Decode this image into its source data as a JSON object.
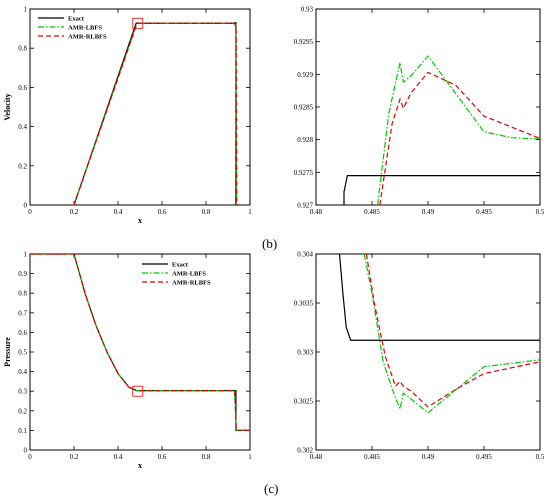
{
  "captions": {
    "b": "(b)",
    "c": "(c)"
  },
  "colors": {
    "exact": "#000000",
    "lbfs": "#00c800",
    "rlbfs": "#e00000",
    "zoom_box": "#e00000"
  },
  "legend_labels": {
    "exact": "Exact",
    "lbfs": "AMR-LBFS",
    "rlbfs": "AMR-RLBFS"
  },
  "chart_data": [
    {
      "id": "velocity-full",
      "type": "line",
      "xlabel": "x",
      "ylabel": "Velocity",
      "xlim": [
        0,
        1
      ],
      "ylim": [
        0,
        1
      ],
      "xticks": [
        "0",
        "0.2",
        "0.4",
        "0.6",
        "0.8",
        "1"
      ],
      "yticks": [
        "0",
        "0.2",
        "0.4",
        "0.6",
        "0.8",
        "1"
      ],
      "legend": "top-left",
      "series": [
        {
          "name": "Exact",
          "key": "exact",
          "points": [
            [
              0.2,
              0
            ],
            [
              0.4826,
              0.9274
            ],
            [
              0.93,
              0.9274
            ],
            [
              0.93,
              0.93
            ],
            [
              0.936,
              0.93
            ],
            [
              0.936,
              0
            ],
            [
              0.95,
              0
            ]
          ]
        },
        {
          "name": "AMR-LBFS",
          "key": "lbfs",
          "points": [
            [
              0.2,
              0
            ],
            [
              0.487,
              0.929
            ],
            [
              0.495,
              0.928
            ],
            [
              0.93,
              0.928
            ],
            [
              0.936,
              0.92
            ],
            [
              0.939,
              0
            ],
            [
              0.95,
              0
            ]
          ]
        },
        {
          "name": "AMR-RLBFS",
          "key": "rlbfs",
          "points": [
            [
              0.2,
              0
            ],
            [
              0.487,
              0.9287
            ],
            [
              0.495,
              0.9283
            ],
            [
              0.93,
              0.928
            ],
            [
              0.937,
              0.9
            ],
            [
              0.94,
              0
            ],
            [
              0.95,
              0
            ]
          ]
        }
      ],
      "zoom_box": {
        "x": 0.49,
        "y": 0.927
      }
    },
    {
      "id": "velocity-zoom",
      "type": "line",
      "xlabel": "",
      "ylabel": "",
      "xlim": [
        0.48,
        0.5
      ],
      "ylim": [
        0.927,
        0.93
      ],
      "xticks": [
        "0.48",
        "0.485",
        "0.49",
        "0.495",
        "0.5"
      ],
      "yticks": [
        "0.927",
        "0.9275",
        "0.928",
        "0.9285",
        "0.929",
        "0.9295",
        "0.93"
      ],
      "series": [
        {
          "name": "Exact",
          "key": "exact",
          "points": [
            [
              0.4825,
              0.927
            ],
            [
              0.4825,
              0.9272
            ],
            [
              0.4828,
              0.92745
            ],
            [
              0.5,
              0.92745
            ]
          ]
        },
        {
          "name": "AMR-LBFS",
          "key": "lbfs",
          "points": [
            [
              0.4855,
              0.927
            ],
            [
              0.4865,
              0.9284
            ],
            [
              0.4875,
              0.92918
            ],
            [
              0.4878,
              0.92888
            ],
            [
              0.4885,
              0.92898
            ],
            [
              0.49,
              0.92928
            ],
            [
              0.495,
              0.92812
            ],
            [
              0.4975,
              0.92803
            ],
            [
              0.5,
              0.92801
            ]
          ]
        },
        {
          "name": "AMR-RLBFS",
          "key": "rlbfs",
          "points": [
            [
              0.4857,
              0.927
            ],
            [
              0.4868,
              0.92825
            ],
            [
              0.4875,
              0.92862
            ],
            [
              0.4878,
              0.92848
            ],
            [
              0.4885,
              0.92872
            ],
            [
              0.49,
              0.92903
            ],
            [
              0.4925,
              0.92883
            ],
            [
              0.495,
              0.92836
            ],
            [
              0.5,
              0.92802
            ]
          ]
        }
      ]
    },
    {
      "id": "pressure-full",
      "type": "line",
      "xlabel": "x",
      "ylabel": "Pressure",
      "xlim": [
        0,
        1
      ],
      "ylim": [
        0,
        1
      ],
      "xticks": [
        "0",
        "0.2",
        "0.4",
        "0.6",
        "0.8",
        "1"
      ],
      "yticks": [
        "0",
        "0.1",
        "0.2",
        "0.3",
        "0.4",
        "0.5",
        "0.6",
        "0.7",
        "0.8",
        "0.9",
        "1"
      ],
      "legend": "top-right",
      "series": [
        {
          "name": "Exact",
          "key": "exact",
          "points": [
            [
              0,
              1
            ],
            [
              0.2,
              1
            ],
            [
              0.25,
              0.8
            ],
            [
              0.3,
              0.635
            ],
            [
              0.35,
              0.5
            ],
            [
              0.4,
              0.39
            ],
            [
              0.45,
              0.32
            ],
            [
              0.4826,
              0.3031
            ],
            [
              0.93,
              0.3031
            ],
            [
              0.936,
              0.3031
            ],
            [
              0.936,
              0.1
            ],
            [
              1,
              0.1
            ]
          ]
        },
        {
          "name": "AMR-LBFS",
          "key": "lbfs",
          "points": [
            [
              0,
              1
            ],
            [
              0.2,
              1
            ],
            [
              0.25,
              0.8
            ],
            [
              0.3,
              0.635
            ],
            [
              0.35,
              0.5
            ],
            [
              0.4,
              0.39
            ],
            [
              0.45,
              0.32
            ],
            [
              0.487,
              0.3024
            ],
            [
              0.49,
              0.30237
            ],
            [
              0.495,
              0.30285
            ],
            [
              0.93,
              0.3029
            ],
            [
              0.938,
              0.1
            ],
            [
              1,
              0.1
            ]
          ]
        },
        {
          "name": "AMR-RLBFS",
          "key": "rlbfs",
          "points": [
            [
              0,
              1
            ],
            [
              0.2,
              1
            ],
            [
              0.25,
              0.8
            ],
            [
              0.3,
              0.635
            ],
            [
              0.35,
              0.5
            ],
            [
              0.4,
              0.39
            ],
            [
              0.45,
              0.32
            ],
            [
              0.487,
              0.3027
            ],
            [
              0.49,
              0.30245
            ],
            [
              0.495,
              0.30275
            ],
            [
              0.93,
              0.3029
            ],
            [
              0.938,
              0.1
            ],
            [
              1,
              0.1
            ]
          ]
        }
      ],
      "zoom_box": {
        "x": 0.49,
        "y": 0.3
      }
    },
    {
      "id": "pressure-zoom",
      "type": "line",
      "xlabel": "",
      "ylabel": "",
      "xlim": [
        0.48,
        0.5
      ],
      "ylim": [
        0.302,
        0.304
      ],
      "xticks": [
        "0.48",
        "0.485",
        "0.49",
        "0.495",
        "0.5"
      ],
      "yticks": [
        "0.302",
        "0.3025",
        "0.303",
        "0.3035",
        "0.304"
      ],
      "series": [
        {
          "name": "Exact",
          "key": "exact",
          "points": [
            [
              0.4821,
              0.304
            ],
            [
              0.4824,
              0.3036
            ],
            [
              0.4827,
              0.30325
            ],
            [
              0.4831,
              0.30312
            ],
            [
              0.5,
              0.30312
            ]
          ]
        },
        {
          "name": "AMR-LBFS",
          "key": "lbfs",
          "points": [
            [
              0.4843,
              0.304
            ],
            [
              0.485,
              0.3036
            ],
            [
              0.486,
              0.3029
            ],
            [
              0.487,
              0.30256
            ],
            [
              0.4875,
              0.30242
            ],
            [
              0.4878,
              0.30258
            ],
            [
              0.4885,
              0.30252
            ],
            [
              0.49,
              0.30238
            ],
            [
              0.495,
              0.30285
            ],
            [
              0.5,
              0.30292
            ]
          ]
        },
        {
          "name": "AMR-RLBFS",
          "key": "rlbfs",
          "points": [
            [
              0.4845,
              0.304
            ],
            [
              0.4852,
              0.3035
            ],
            [
              0.4862,
              0.30295
            ],
            [
              0.4871,
              0.30265
            ],
            [
              0.4875,
              0.3027
            ],
            [
              0.4878,
              0.30265
            ],
            [
              0.4885,
              0.3026
            ],
            [
              0.49,
              0.30244
            ],
            [
              0.4925,
              0.30262
            ],
            [
              0.495,
              0.30278
            ],
            [
              0.5,
              0.3029
            ]
          ]
        }
      ]
    }
  ]
}
